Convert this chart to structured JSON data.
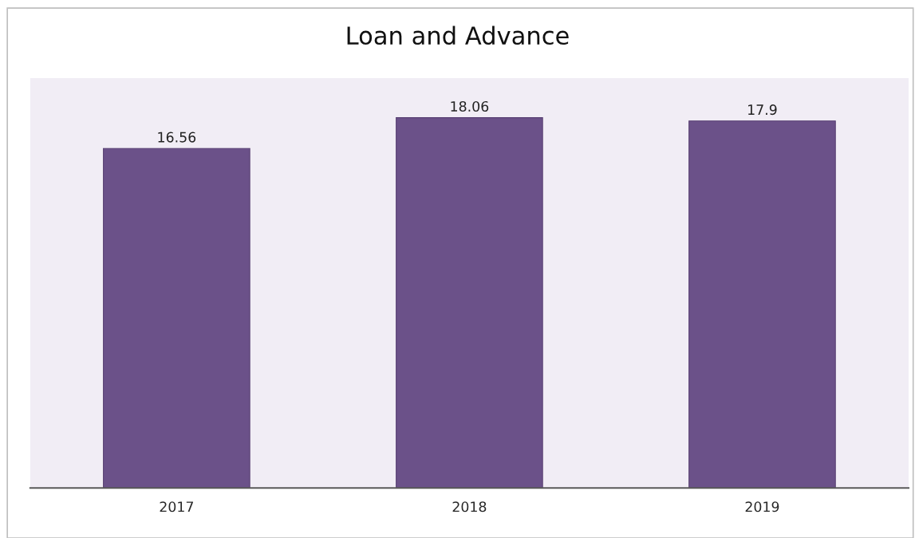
{
  "chart_data": {
    "type": "bar",
    "title": "Loan and Advance",
    "categories": [
      "2017",
      "2018",
      "2019"
    ],
    "values": [
      16.56,
      18.06,
      17.9
    ],
    "color": "#6b5189",
    "data_labels": true
  }
}
